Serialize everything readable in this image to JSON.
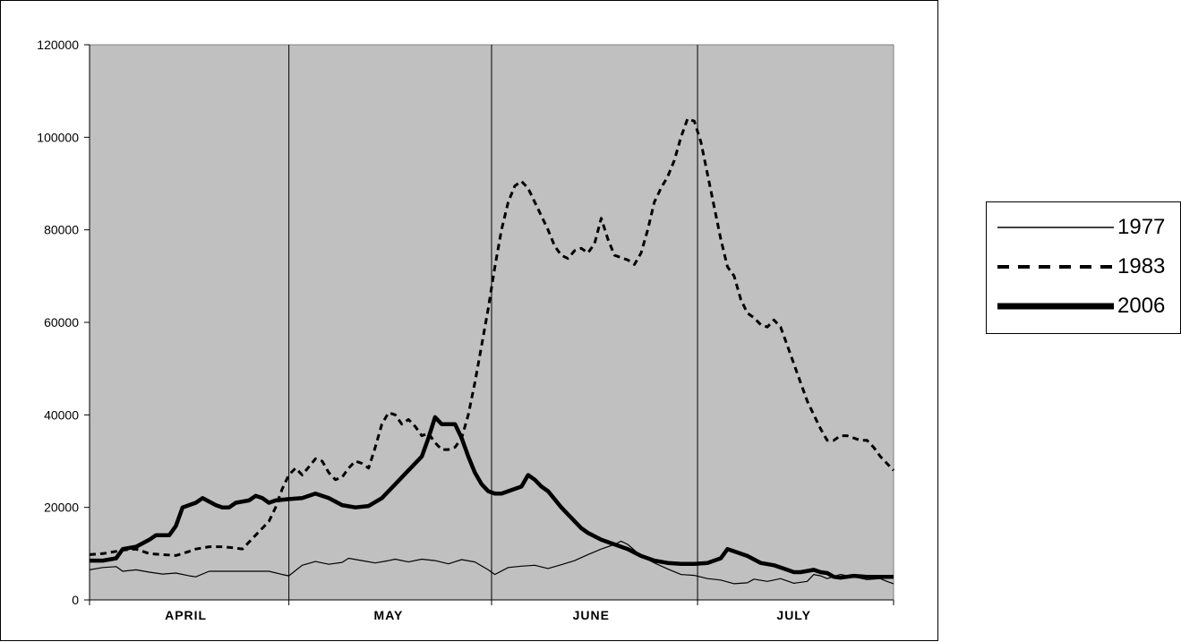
{
  "chart_data": {
    "type": "line",
    "title": "",
    "xlabel": "",
    "ylabel": "",
    "ylim": [
      0,
      120000
    ],
    "yticks": [
      0,
      20000,
      40000,
      60000,
      80000,
      100000,
      120000
    ],
    "ytick_labels": [
      "0",
      "20000",
      "40000",
      "60000",
      "80000",
      "100000",
      "120000"
    ],
    "x_unit": "day",
    "x_range": [
      1,
      122
    ],
    "month_labels": [
      {
        "label": "APRIL",
        "center_day": 15.5
      },
      {
        "label": "MAY",
        "center_day": 46
      },
      {
        "label": "JUNE",
        "center_day": 76.5
      },
      {
        "label": "JULY",
        "center_day": 107
      }
    ],
    "month_boundaries": [
      31,
      61.5,
      92.5
    ],
    "grid": false,
    "background_color": "#c0c0c0",
    "legend_position": "right",
    "series": [
      {
        "name": "1977",
        "style": "thin-solid",
        "color": "#000000",
        "points": [
          [
            1,
            6500
          ],
          [
            3,
            7000
          ],
          [
            5,
            7200
          ],
          [
            6,
            6200
          ],
          [
            8,
            6500
          ],
          [
            10,
            6000
          ],
          [
            12,
            5600
          ],
          [
            14,
            5800
          ],
          [
            16,
            5200
          ],
          [
            17,
            5000
          ],
          [
            19,
            6200
          ],
          [
            22,
            6200
          ],
          [
            25,
            6200
          ],
          [
            28,
            6200
          ],
          [
            30,
            5500
          ],
          [
            31,
            5200
          ],
          [
            33,
            7500
          ],
          [
            35,
            8300
          ],
          [
            37,
            7700
          ],
          [
            39,
            8100
          ],
          [
            40,
            9000
          ],
          [
            42,
            8500
          ],
          [
            44,
            8000
          ],
          [
            46,
            8500
          ],
          [
            47,
            8800
          ],
          [
            49,
            8200
          ],
          [
            51,
            8800
          ],
          [
            53,
            8500
          ],
          [
            55,
            7800
          ],
          [
            57,
            8700
          ],
          [
            59,
            8200
          ],
          [
            61,
            6500
          ],
          [
            62,
            5500
          ],
          [
            64,
            7000
          ],
          [
            66,
            7300
          ],
          [
            68,
            7500
          ],
          [
            70,
            6800
          ],
          [
            72,
            7600
          ],
          [
            74,
            8500
          ],
          [
            76,
            9800
          ],
          [
            78,
            11000
          ],
          [
            80,
            12000
          ],
          [
            81,
            12700
          ],
          [
            82,
            12000
          ],
          [
            84,
            9500
          ],
          [
            86,
            8000
          ],
          [
            88,
            6700
          ],
          [
            90,
            5500
          ],
          [
            92,
            5300
          ],
          [
            94,
            4600
          ],
          [
            96,
            4300
          ],
          [
            98,
            3500
          ],
          [
            100,
            3700
          ],
          [
            101,
            4500
          ],
          [
            103,
            4000
          ],
          [
            105,
            4600
          ],
          [
            107,
            3600
          ],
          [
            109,
            4000
          ],
          [
            110,
            5500
          ],
          [
            111,
            5200
          ],
          [
            112,
            4600
          ],
          [
            114,
            5500
          ],
          [
            116,
            5000
          ],
          [
            118,
            4400
          ],
          [
            120,
            4600
          ],
          [
            121,
            4000
          ],
          [
            122,
            3500
          ]
        ]
      },
      {
        "name": "1983",
        "style": "dashed",
        "color": "#000000",
        "points": [
          [
            1,
            9800
          ],
          [
            3,
            10000
          ],
          [
            5,
            10500
          ],
          [
            6,
            10800
          ],
          [
            8,
            11000
          ],
          [
            10,
            10000
          ],
          [
            12,
            9800
          ],
          [
            14,
            9600
          ],
          [
            16,
            10500
          ],
          [
            17,
            11000
          ],
          [
            19,
            11500
          ],
          [
            21,
            11500
          ],
          [
            23,
            11200
          ],
          [
            24,
            11000
          ],
          [
            26,
            14000
          ],
          [
            28,
            17000
          ],
          [
            29,
            20000
          ],
          [
            30,
            24000
          ],
          [
            31,
            27000
          ],
          [
            32,
            28500
          ],
          [
            33,
            27000
          ],
          [
            35,
            30500
          ],
          [
            36,
            30000
          ],
          [
            37,
            27500
          ],
          [
            38,
            26000
          ],
          [
            39,
            26500
          ],
          [
            40,
            28500
          ],
          [
            41,
            30000
          ],
          [
            42,
            29500
          ],
          [
            43,
            28500
          ],
          [
            44,
            33000
          ],
          [
            45,
            38000
          ],
          [
            46,
            40500
          ],
          [
            47,
            40000
          ],
          [
            48,
            38000
          ],
          [
            49,
            39000
          ],
          [
            50,
            37500
          ],
          [
            51,
            35500
          ],
          [
            52,
            36000
          ],
          [
            53,
            34000
          ],
          [
            54,
            32500
          ],
          [
            55,
            32500
          ],
          [
            56,
            33000
          ],
          [
            57,
            35000
          ],
          [
            58,
            40000
          ],
          [
            59,
            47000
          ],
          [
            60,
            55000
          ],
          [
            61,
            63000
          ],
          [
            62,
            72000
          ],
          [
            63,
            80000
          ],
          [
            64,
            86000
          ],
          [
            65,
            89500
          ],
          [
            66,
            90500
          ],
          [
            67,
            89000
          ],
          [
            68,
            86000
          ],
          [
            69,
            83000
          ],
          [
            70,
            80000
          ],
          [
            71,
            76500
          ],
          [
            72,
            74500
          ],
          [
            73,
            73800
          ],
          [
            74,
            75500
          ],
          [
            75,
            76000
          ],
          [
            76,
            75000
          ],
          [
            77,
            77000
          ],
          [
            78,
            82500
          ],
          [
            79,
            78000
          ],
          [
            80,
            74500
          ],
          [
            81,
            74000
          ],
          [
            82,
            73500
          ],
          [
            83,
            72500
          ],
          [
            84,
            75000
          ],
          [
            85,
            80000
          ],
          [
            86,
            86000
          ],
          [
            87,
            89000
          ],
          [
            88,
            91500
          ],
          [
            89,
            95000
          ],
          [
            90,
            100000
          ],
          [
            91,
            104000
          ],
          [
            92,
            103500
          ],
          [
            93,
            99000
          ],
          [
            94,
            92000
          ],
          [
            95,
            85000
          ],
          [
            96,
            78000
          ],
          [
            97,
            72000
          ],
          [
            98,
            70000
          ],
          [
            99,
            65000
          ],
          [
            100,
            62000
          ],
          [
            101,
            61000
          ],
          [
            102,
            59500
          ],
          [
            103,
            59000
          ],
          [
            104,
            60500
          ],
          [
            105,
            59000
          ],
          [
            106,
            55000
          ],
          [
            107,
            51000
          ],
          [
            108,
            47000
          ],
          [
            109,
            43000
          ],
          [
            110,
            40000
          ],
          [
            111,
            37000
          ],
          [
            112,
            34500
          ],
          [
            113,
            34500
          ],
          [
            114,
            35500
          ],
          [
            115,
            35500
          ],
          [
            116,
            35000
          ],
          [
            117,
            34500
          ],
          [
            118,
            34500
          ],
          [
            119,
            33000
          ],
          [
            120,
            31000
          ],
          [
            121,
            29500
          ],
          [
            122,
            28000
          ]
        ]
      },
      {
        "name": "2006",
        "style": "thick-solid",
        "color": "#000000",
        "points": [
          [
            1,
            8500
          ],
          [
            3,
            8500
          ],
          [
            5,
            9000
          ],
          [
            6,
            11000
          ],
          [
            8,
            11500
          ],
          [
            10,
            13000
          ],
          [
            11,
            14000
          ],
          [
            13,
            14000
          ],
          [
            14,
            16000
          ],
          [
            15,
            20000
          ],
          [
            16,
            20500
          ],
          [
            17,
            21000
          ],
          [
            18,
            22000
          ],
          [
            20,
            20500
          ],
          [
            21,
            20000
          ],
          [
            22,
            20000
          ],
          [
            23,
            21000
          ],
          [
            25,
            21500
          ],
          [
            26,
            22500
          ],
          [
            27,
            22000
          ],
          [
            28,
            21000
          ],
          [
            29,
            21500
          ],
          [
            31,
            21800
          ],
          [
            33,
            22000
          ],
          [
            34,
            22500
          ],
          [
            35,
            23000
          ],
          [
            37,
            22000
          ],
          [
            39,
            20500
          ],
          [
            41,
            20000
          ],
          [
            43,
            20300
          ],
          [
            45,
            22000
          ],
          [
            47,
            25000
          ],
          [
            49,
            28000
          ],
          [
            51,
            31000
          ],
          [
            52,
            35000
          ],
          [
            53,
            39500
          ],
          [
            54,
            38000
          ],
          [
            55,
            38000
          ],
          [
            56,
            38000
          ],
          [
            57,
            35000
          ],
          [
            58,
            31000
          ],
          [
            59,
            27500
          ],
          [
            60,
            25000
          ],
          [
            61,
            23500
          ],
          [
            62,
            23000
          ],
          [
            63,
            23000
          ],
          [
            64,
            23500
          ],
          [
            66,
            24500
          ],
          [
            67,
            27000
          ],
          [
            68,
            26000
          ],
          [
            69,
            24500
          ],
          [
            70,
            23500
          ],
          [
            72,
            20000
          ],
          [
            73,
            18500
          ],
          [
            74,
            17000
          ],
          [
            75,
            15500
          ],
          [
            76,
            14500
          ],
          [
            78,
            13000
          ],
          [
            80,
            12000
          ],
          [
            82,
            11000
          ],
          [
            84,
            9500
          ],
          [
            86,
            8500
          ],
          [
            88,
            8000
          ],
          [
            90,
            7800
          ],
          [
            92,
            7800
          ],
          [
            94,
            8000
          ],
          [
            96,
            9000
          ],
          [
            97,
            11000
          ],
          [
            98,
            10500
          ],
          [
            100,
            9500
          ],
          [
            102,
            8000
          ],
          [
            104,
            7500
          ],
          [
            106,
            6500
          ],
          [
            107,
            6000
          ],
          [
            108,
            6000
          ],
          [
            110,
            6500
          ],
          [
            111,
            6000
          ],
          [
            112,
            5800
          ],
          [
            113,
            5000
          ],
          [
            114,
            4800
          ],
          [
            116,
            5200
          ],
          [
            118,
            5000
          ],
          [
            120,
            5000
          ],
          [
            121,
            5000
          ],
          [
            122,
            5000
          ]
        ]
      }
    ]
  }
}
